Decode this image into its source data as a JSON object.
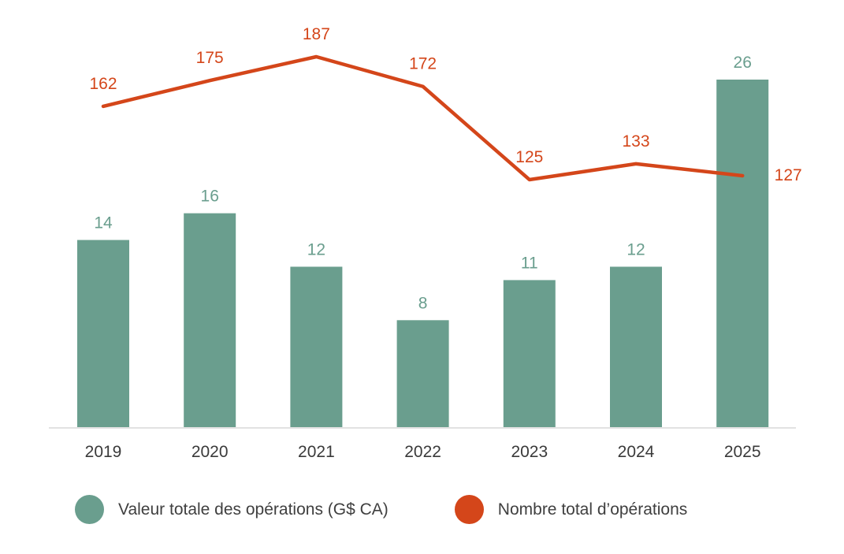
{
  "chart_data": {
    "type": "bar",
    "title": "",
    "xlabel": "",
    "ylabel": "",
    "categories": [
      "2019",
      "2020",
      "2021",
      "2022",
      "2023",
      "2024",
      "2025"
    ],
    "series": [
      {
        "name": "Valeur totale des opérations (G$ CA)",
        "type": "bar",
        "color": "#6a9e8e",
        "values": [
          14,
          16,
          12,
          8,
          11,
          12,
          26
        ]
      },
      {
        "name": "Nombre total d’opérations",
        "type": "line",
        "color": "#d4461a",
        "values": [
          162,
          175,
          187,
          172,
          125,
          133,
          127
        ]
      }
    ],
    "grid": false,
    "legend_position": "bottom",
    "axis_line_color": "#d9d9d9"
  },
  "legend": {
    "items": [
      {
        "label": "Valeur totale des opérations (G$ CA)",
        "color": "#6a9e8e"
      },
      {
        "label": "Nombre total d’opérations",
        "color": "#d4461a"
      }
    ]
  }
}
